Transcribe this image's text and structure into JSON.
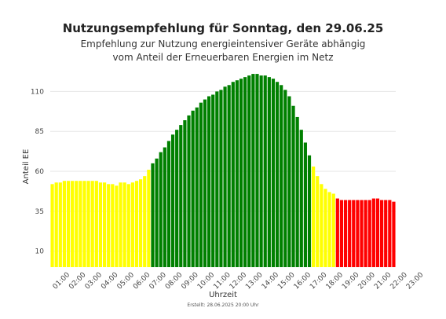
{
  "chart_data": {
    "type": "bar",
    "title": "Nutzungsempfehlung für Sonntag, den 29.06.25",
    "subtitle_lines": [
      "Empfehlung zur Nutzung energieintensiver Geräte abhängig",
      "vom Anteil der Erneuerbaren Energien im Netz"
    ],
    "xlabel": "Uhrzeit",
    "ylabel": "Anteil EE",
    "footnote": "Erstellt: 28.06.2025 20:00 Uhr",
    "ylim": [
      0,
      123
    ],
    "yticks": [
      10,
      35,
      60,
      85,
      110
    ],
    "xtick_labels": [
      "01:00",
      "02:00",
      "03:00",
      "04:00",
      "05:00",
      "06:00",
      "07:00",
      "08:00",
      "09:00",
      "10:00",
      "11:00",
      "12:00",
      "13:00",
      "14:00",
      "15:00",
      "16:00",
      "17:00",
      "18:00",
      "19:00",
      "20:00",
      "21:00",
      "22:00",
      "23:00"
    ],
    "grid": true,
    "colors": {
      "yellow": "#ffff00",
      "green": "#008000",
      "red": "#ff0000"
    },
    "values": [
      52,
      53,
      53,
      54,
      54,
      54,
      54,
      54,
      54,
      54,
      54,
      54,
      53,
      53,
      52,
      52,
      51,
      53,
      53,
      52,
      53,
      54,
      55,
      57,
      61,
      65,
      68,
      72,
      75,
      79,
      83,
      86,
      89,
      92,
      95,
      98,
      100,
      103,
      105,
      107,
      108,
      110,
      111,
      113,
      114,
      116,
      117,
      118,
      119,
      120,
      121,
      121,
      120,
      120,
      119,
      118,
      116,
      114,
      111,
      107,
      101,
      94,
      86,
      78,
      70,
      63,
      57,
      52,
      49,
      47,
      46,
      43,
      42,
      42,
      42,
      42,
      42,
      42,
      42,
      42,
      43,
      43,
      42,
      42,
      42,
      41
    ],
    "colors_per_bar": [
      "yellow",
      "yellow",
      "yellow",
      "yellow",
      "yellow",
      "yellow",
      "yellow",
      "yellow",
      "yellow",
      "yellow",
      "yellow",
      "yellow",
      "yellow",
      "yellow",
      "yellow",
      "yellow",
      "yellow",
      "yellow",
      "yellow",
      "yellow",
      "yellow",
      "yellow",
      "yellow",
      "yellow",
      "yellow",
      "green",
      "green",
      "green",
      "green",
      "green",
      "green",
      "green",
      "green",
      "green",
      "green",
      "green",
      "green",
      "green",
      "green",
      "green",
      "green",
      "green",
      "green",
      "green",
      "green",
      "green",
      "green",
      "green",
      "green",
      "green",
      "green",
      "green",
      "green",
      "green",
      "green",
      "green",
      "green",
      "green",
      "green",
      "green",
      "green",
      "green",
      "green",
      "green",
      "green",
      "yellow",
      "yellow",
      "yellow",
      "yellow",
      "yellow",
      "yellow",
      "red",
      "red",
      "red",
      "red",
      "red",
      "red",
      "red",
      "red",
      "red",
      "red",
      "red",
      "red",
      "red",
      "red",
      "red"
    ]
  }
}
